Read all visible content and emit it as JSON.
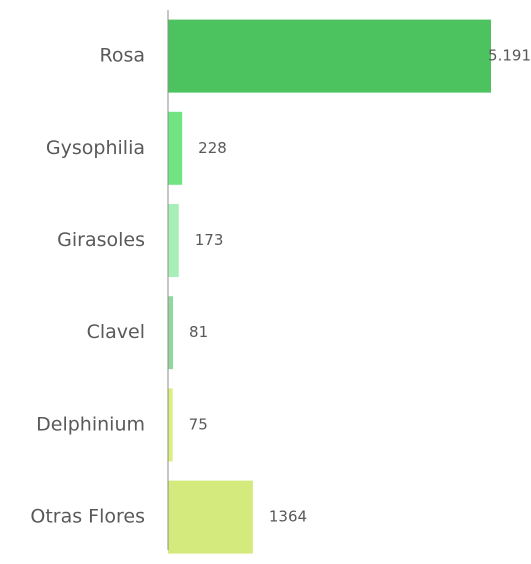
{
  "chart_data": {
    "type": "barh",
    "categories": [
      "Rosa",
      "Gysophilia",
      "Girasoles",
      "Clavel",
      "Delphinium",
      "Otras Flores"
    ],
    "values": [
      5191,
      228,
      173,
      81,
      75,
      1364
    ],
    "value_labels": [
      "5.191",
      "228",
      "173",
      "81",
      "75",
      "1364"
    ],
    "colors": [
      "#4cc35f",
      "#6fe480",
      "#a7efb6",
      "#92d89e",
      "#d9f07c",
      "#d5ea7d"
    ]
  }
}
